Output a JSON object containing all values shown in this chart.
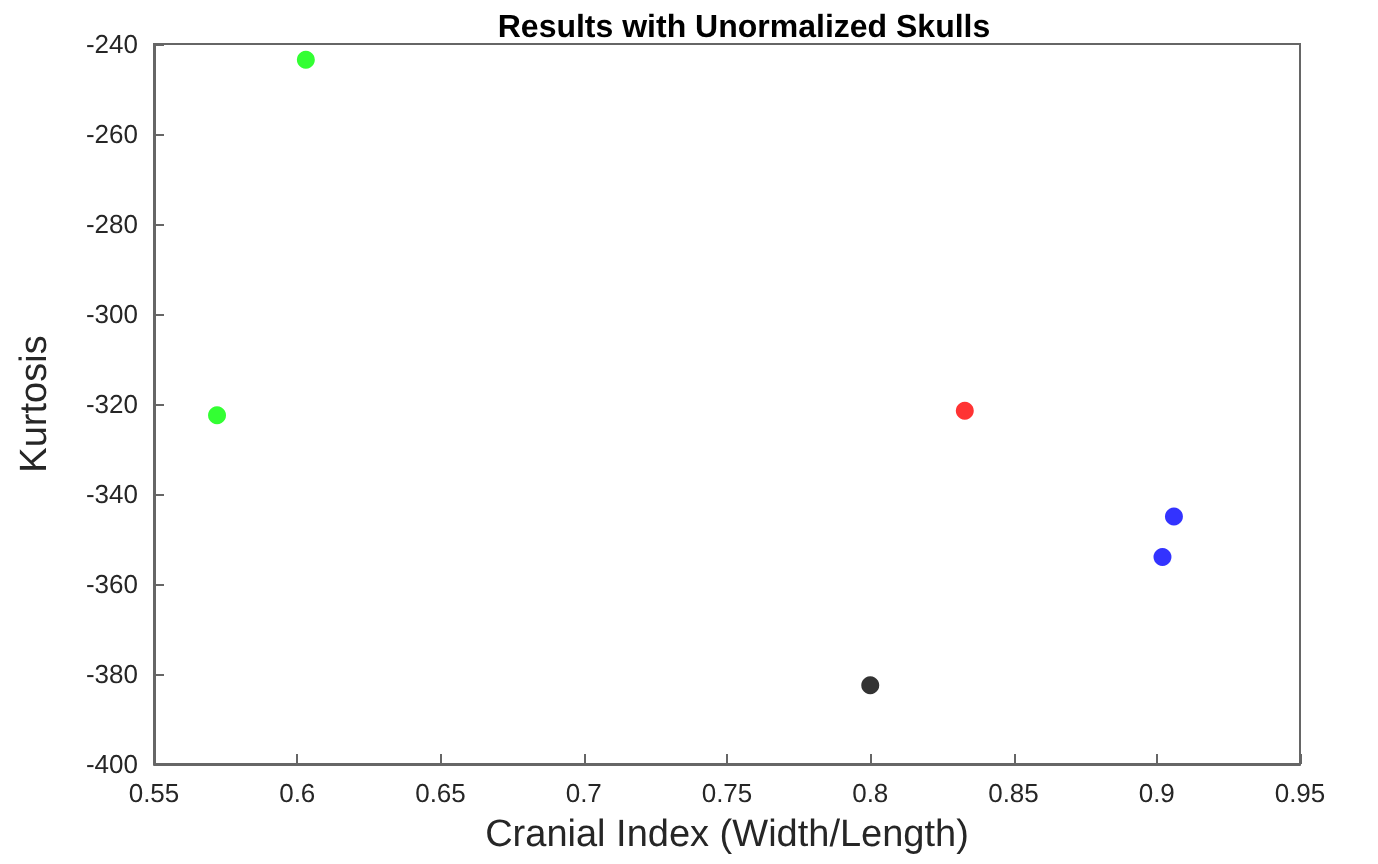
{
  "chart_data": {
    "type": "scatter",
    "title": "Results with Unormalized Skulls",
    "xlabel": "Cranial Index (Width/Length)",
    "ylabel": "Kurtosis",
    "series": [
      {
        "color": "#00ff00",
        "x": [
          0.572,
          0.603
        ],
        "values": [
          -322.5,
          -243.5
        ]
      },
      {
        "color": "#ff0000",
        "x": [
          0.833
        ],
        "values": [
          -321.5
        ]
      },
      {
        "color": "#0000ff",
        "x": [
          0.902,
          0.906
        ],
        "values": [
          -354,
          -345
        ]
      },
      {
        "color": "#000000",
        "x": [
          0.8
        ],
        "values": [
          -382.5
        ]
      }
    ],
    "xlim": [
      0.55,
      0.95
    ],
    "xticks": [
      0.55,
      0.6,
      0.65,
      0.7,
      0.75,
      0.8,
      0.85,
      0.9,
      0.95
    ],
    "ylim": [
      -400,
      -240
    ],
    "yticks": [
      -400,
      -380,
      -360,
      -340,
      -320,
      -300,
      -280,
      -260,
      -240
    ],
    "grid": false,
    "marker": "circle"
  }
}
